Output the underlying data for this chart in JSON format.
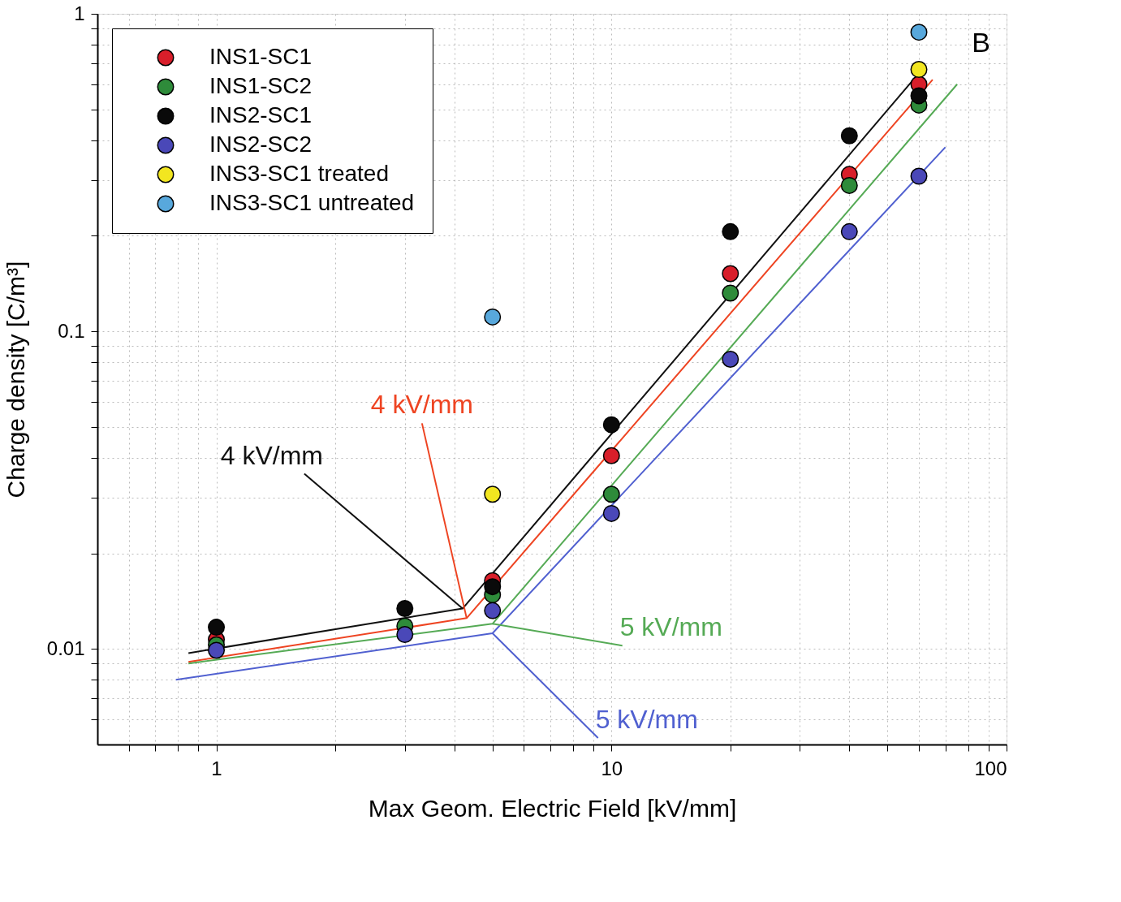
{
  "chart_data": {
    "type": "scatter",
    "xlabel": "Max Geom. Electric Field [kV/mm]",
    "ylabel": "Charge density [C/m³]",
    "log": "xy",
    "grid": true,
    "legend": "top left",
    "marker": "circle",
    "xlim": [
      0.5,
      100
    ],
    "ylim": [
      0.005,
      1
    ],
    "xticks": [
      {
        "value": 0.6,
        "label": null
      },
      {
        "value": 0.7,
        "label": null
      },
      {
        "value": 0.8,
        "label": null
      },
      {
        "value": 0.9,
        "label": null
      },
      1,
      {
        "value": 2,
        "label": null
      },
      {
        "value": 3,
        "label": null
      },
      {
        "value": 4,
        "label": null
      },
      {
        "value": 5,
        "label": null
      },
      {
        "value": 6,
        "label": null
      },
      {
        "value": 7,
        "label": null
      },
      {
        "value": 8,
        "label": null
      },
      {
        "value": 9,
        "label": null
      },
      10,
      {
        "value": 20,
        "label": null
      },
      {
        "value": 30,
        "label": null
      },
      {
        "value": 40,
        "label": null
      },
      {
        "value": 50,
        "label": null
      },
      {
        "value": 60,
        "label": null
      },
      {
        "value": 70,
        "label": null
      },
      {
        "value": 80,
        "label": null
      },
      {
        "value": 90,
        "label": null
      },
      100
    ],
    "yticks": [
      {
        "value": 0.006,
        "label": null
      },
      {
        "value": 0.007,
        "label": null
      },
      {
        "value": 0.008,
        "label": null
      },
      {
        "value": 0.009,
        "label": null
      },
      0.01,
      {
        "value": 0.02,
        "label": null
      },
      {
        "value": 0.03,
        "label": null
      },
      {
        "value": 0.04,
        "label": null
      },
      {
        "value": 0.05,
        "label": null
      },
      {
        "value": 0.06,
        "label": null
      },
      {
        "value": 0.07,
        "label": null
      },
      {
        "value": 0.08,
        "label": null
      },
      {
        "value": 0.09,
        "label": null
      },
      0.1,
      {
        "value": 0.2,
        "label": null
      },
      {
        "value": 0.3,
        "label": null
      },
      {
        "value": 0.4,
        "label": null
      },
      {
        "value": 0.5,
        "label": null
      },
      {
        "value": 0.6,
        "label": null
      },
      {
        "value": 0.7,
        "label": null
      },
      {
        "value": 0.8,
        "label": null
      },
      {
        "value": 0.9,
        "label": null
      },
      1
    ],
    "series": [
      {
        "type": "line",
        "marker": "none",
        "line_style": "solid",
        "color": "#111111",
        "x": [
          0.85,
          4.2,
          60
        ],
        "values": [
          0.0097,
          0.0134,
          0.65
        ]
      },
      {
        "type": "line",
        "marker": "none",
        "line_style": "solid",
        "color": "#ee4422",
        "x": [
          0.85,
          4.3,
          65
        ],
        "values": [
          0.0091,
          0.0125,
          0.62
        ]
      },
      {
        "type": "line",
        "marker": "none",
        "line_style": "solid",
        "color": "#55aa55",
        "x": [
          0.85,
          5,
          75
        ],
        "values": [
          0.009,
          0.012,
          0.6
        ]
      },
      {
        "type": "line",
        "marker": "none",
        "line_style": "solid",
        "color": "#5060d0",
        "x": [
          0.79,
          5,
          70
        ],
        "values": [
          0.008,
          0.0112,
          0.38
        ]
      },
      {
        "name": "INS1-SC1",
        "color": "#d81e2a",
        "x": [
          1,
          3,
          5,
          10,
          20,
          40,
          60
        ],
        "values": [
          0.0107,
          null,
          0.0164,
          0.0406,
          0.152,
          0.312,
          0.6
        ]
      },
      {
        "name": "INS1-SC2",
        "color": "#2e8b3a",
        "x": [
          1,
          3,
          5,
          10,
          20,
          40,
          60
        ],
        "values": [
          0.0103,
          0.0118,
          0.0148,
          0.0307,
          0.132,
          0.288,
          0.516
        ]
      },
      {
        "name": "INS2-SC1",
        "color": "#0a0a0a",
        "x": [
          1,
          3,
          5,
          10,
          20,
          40,
          60
        ],
        "values": [
          0.0117,
          0.0134,
          0.0157,
          0.0508,
          0.206,
          0.413,
          0.552
        ]
      },
      {
        "name": "INS2-SC2",
        "color": "#4a48b8",
        "x": [
          1,
          3,
          5,
          10,
          20,
          40,
          60
        ],
        "values": [
          0.0099,
          0.0111,
          0.0132,
          0.0267,
          0.0817,
          0.206,
          0.308
        ]
      },
      {
        "name": "INS3-SC1 treated",
        "color": "#f2e620",
        "x": [
          5,
          60
        ],
        "values": [
          0.0307,
          0.668
        ]
      },
      {
        "name": "INS3-SC1 untreated",
        "color": "#58a8dc",
        "x": [
          5,
          60
        ],
        "values": [
          0.111,
          0.875
        ]
      }
    ],
    "annotations": [
      {
        "text": "4 kV/mm",
        "x": 4.2,
        "y": 0.0134
      },
      {
        "text": "4 kV/mm",
        "x": 4.3,
        "y": 0.0125
      },
      {
        "text": "5 kV/mm",
        "x": 5,
        "y": 0.012
      },
      {
        "text": "5 kV/mm",
        "x": 5,
        "y": 0.0112
      },
      "B"
    ]
  }
}
